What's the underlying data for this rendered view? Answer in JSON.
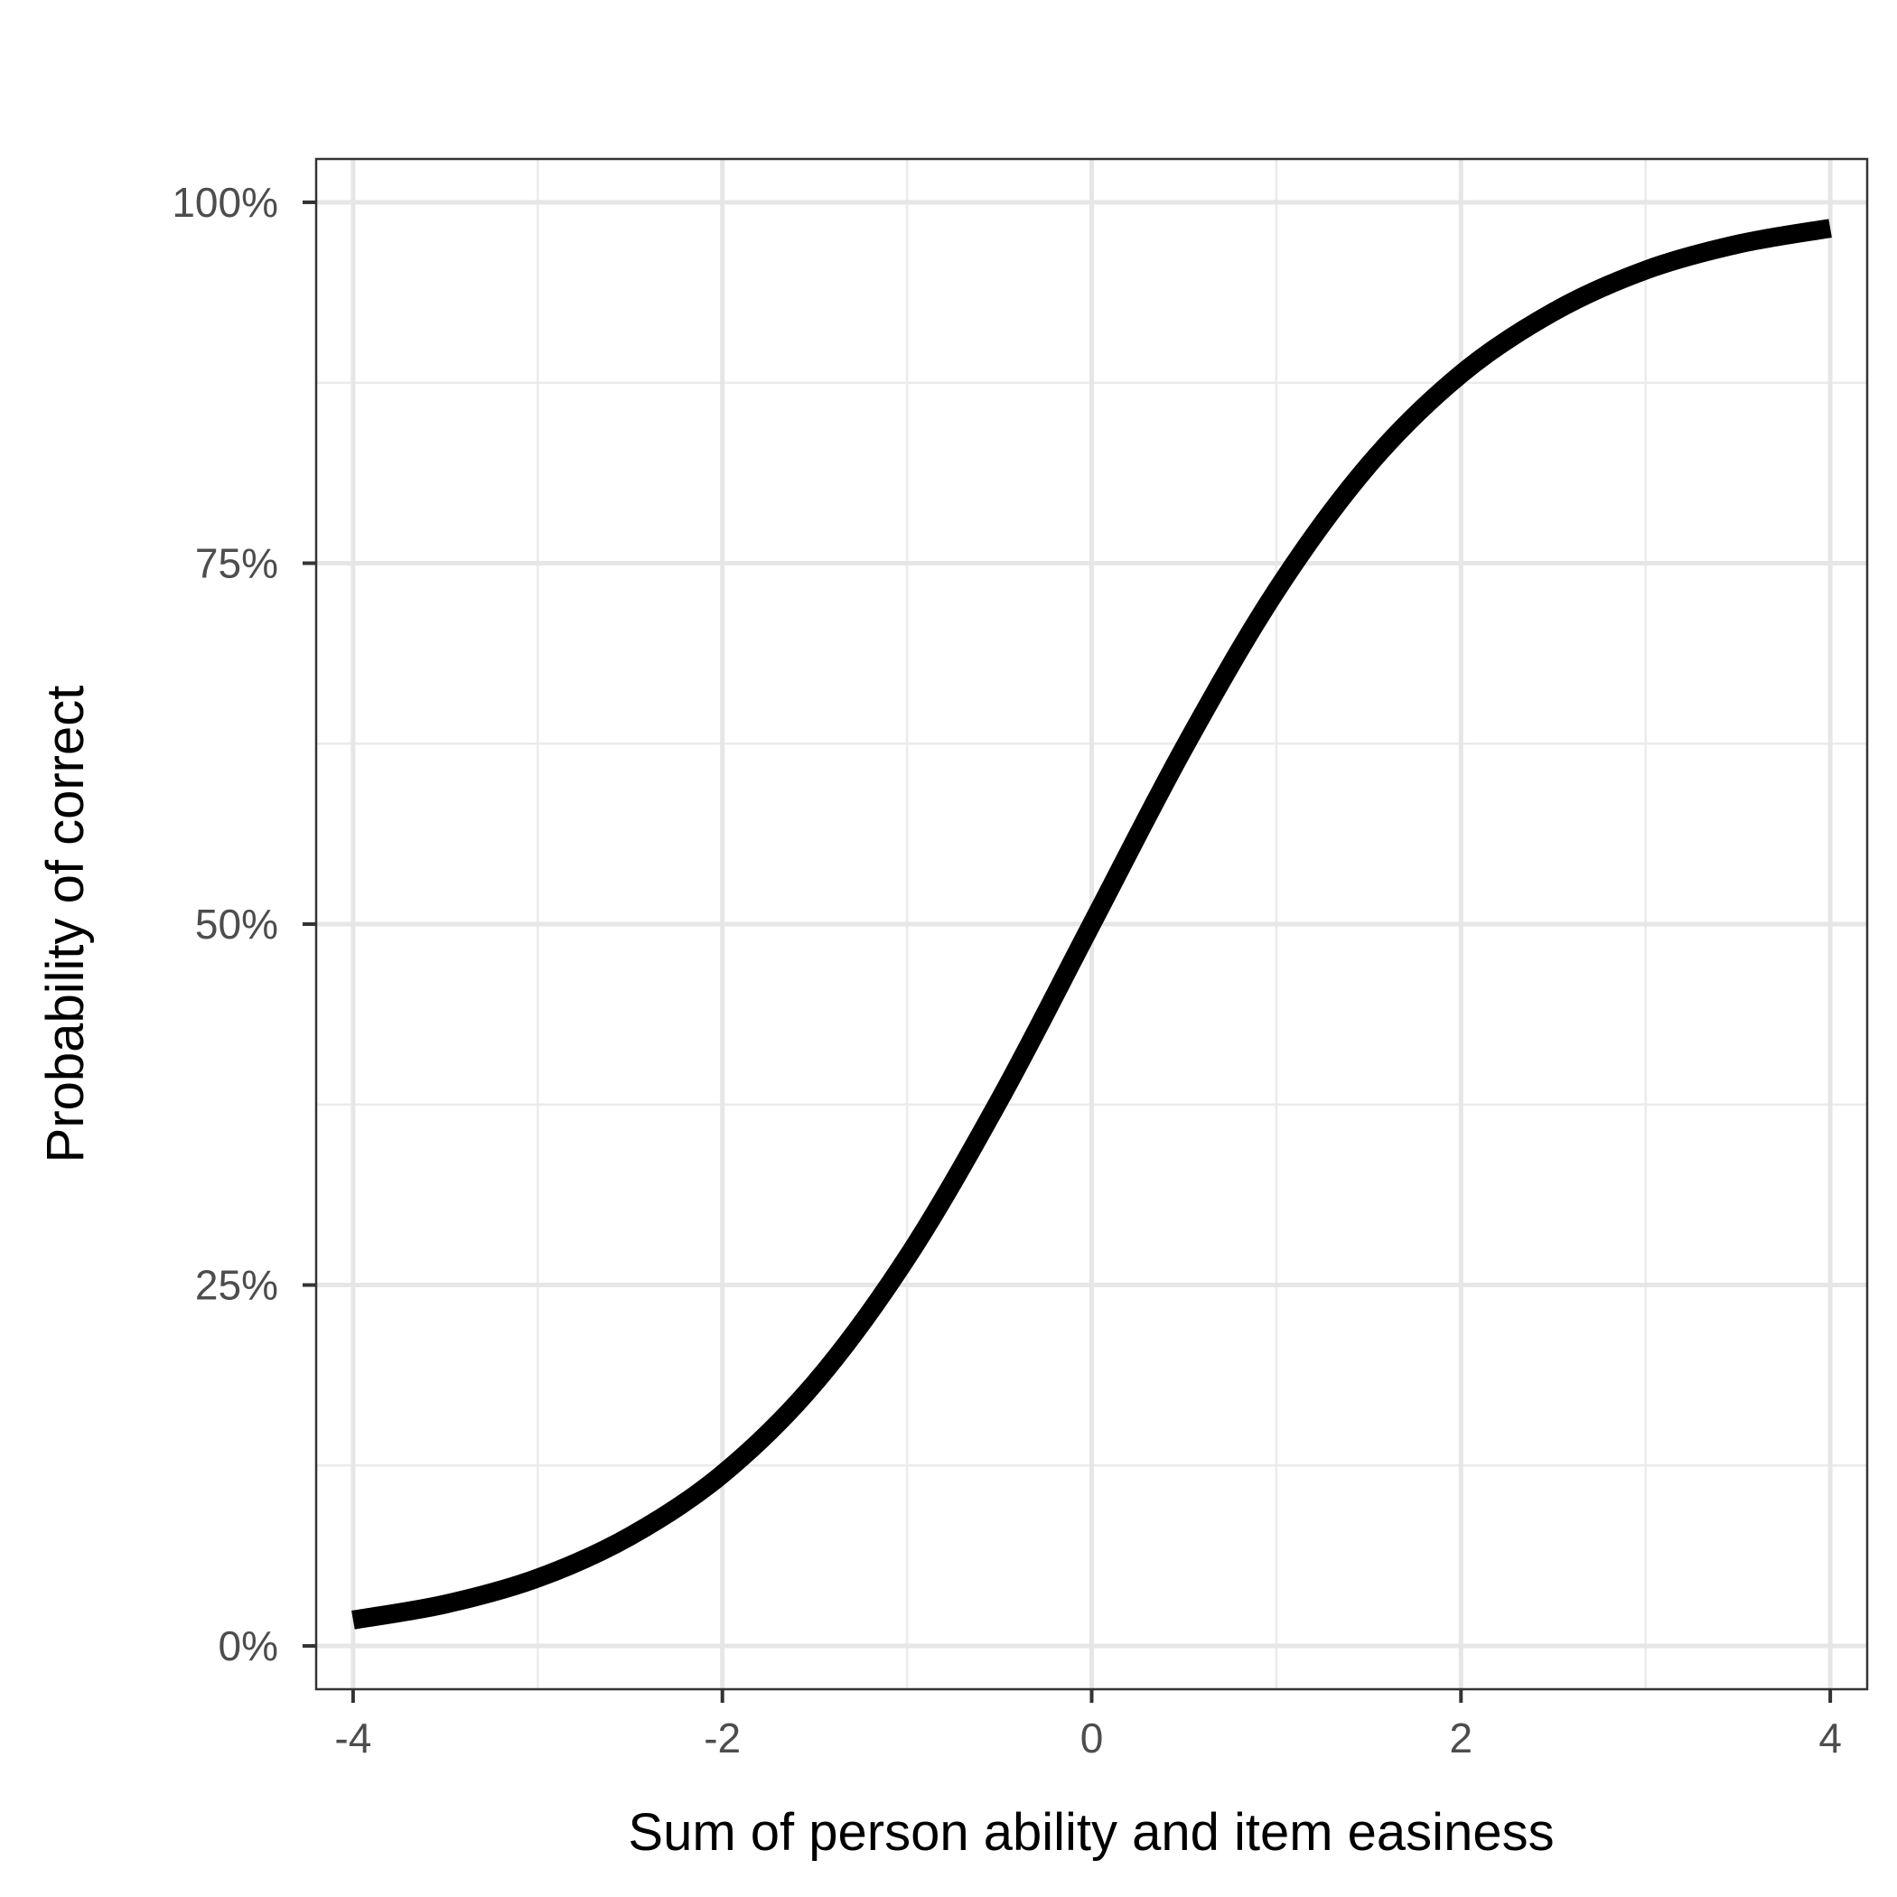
{
  "chart_data": {
    "type": "line",
    "title": "",
    "xlabel": "Sum of person ability and item easiness",
    "ylabel": "Probability of correct",
    "xlim": [
      -4.2,
      4.2
    ],
    "ylim": [
      -0.03,
      1.03
    ],
    "x_ticks": [
      {
        "value": -4,
        "label": "-4"
      },
      {
        "value": -2,
        "label": "-2"
      },
      {
        "value": 0,
        "label": "0"
      },
      {
        "value": 2,
        "label": "2"
      },
      {
        "value": 4,
        "label": "4"
      }
    ],
    "x_minor": [
      -3,
      -1,
      1,
      3
    ],
    "y_ticks": [
      {
        "value": 0,
        "label": "0%"
      },
      {
        "value": 0.25,
        "label": "25%"
      },
      {
        "value": 0.5,
        "label": "50%"
      },
      {
        "value": 0.75,
        "label": "75%"
      },
      {
        "value": 1,
        "label": "100%"
      }
    ],
    "y_minor": [
      0.125,
      0.375,
      0.625,
      0.875
    ],
    "grid": true,
    "series": [
      {
        "color": "#000000",
        "x": [
          -4,
          -3.5,
          -3,
          -2.5,
          -2,
          -1.5,
          -1,
          -0.5,
          0,
          0.5,
          1,
          1.5,
          2,
          2.5,
          3,
          3.5,
          4
        ],
        "y": [
          0.018,
          0.029,
          0.047,
          0.076,
          0.119,
          0.182,
          0.269,
          0.378,
          0.5,
          0.622,
          0.731,
          0.818,
          0.881,
          0.924,
          0.953,
          0.971,
          0.982
        ]
      }
    ]
  }
}
